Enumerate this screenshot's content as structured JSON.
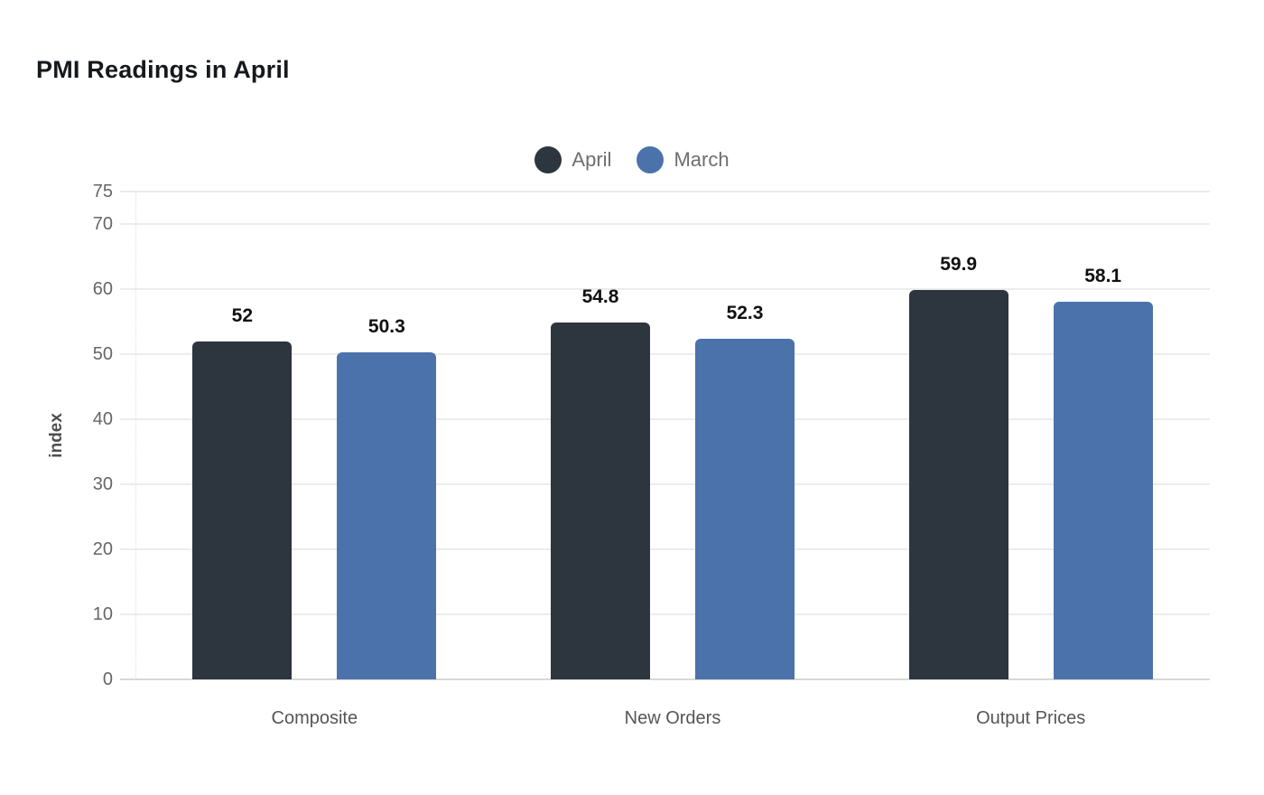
{
  "page": {
    "background": "#ffffff"
  },
  "header": {
    "title": "PMI Readings in April"
  },
  "legend": {
    "items": [
      {
        "label": "April",
        "color": "#2d353e"
      },
      {
        "label": "March",
        "color": "#4c72ab"
      }
    ]
  },
  "axes": {
    "y_axis_title": "index",
    "y_tick_labels": [
      "0",
      "10",
      "20",
      "30",
      "40",
      "50",
      "60",
      "70",
      "75"
    ]
  },
  "chart_data": {
    "type": "bar",
    "title": "PMI Readings in April",
    "categories": [
      "Composite",
      "New Orders",
      "Output Prices"
    ],
    "series": [
      {
        "name": "April",
        "color": "#2d353e",
        "values": [
          52,
          54.8,
          59.9
        ],
        "value_labels": [
          "52",
          "54.8",
          "59.9"
        ]
      },
      {
        "name": "March",
        "color": "#4c72ab",
        "values": [
          50.3,
          52.3,
          58.1
        ],
        "value_labels": [
          "50.3",
          "52.3",
          "58.1"
        ]
      }
    ],
    "xlabel": "",
    "ylabel": "index",
    "yticks": [
      0,
      10,
      20,
      30,
      40,
      50,
      60,
      70,
      75
    ],
    "ylim": [
      0,
      75
    ],
    "grid": true,
    "grid_color": "#ececec",
    "baseline_color": "#d8d8d8",
    "legend_position": "top-center",
    "bar_corner_radius": 6,
    "value_label_color": "#111111",
    "tick_label_color": "#666666"
  }
}
